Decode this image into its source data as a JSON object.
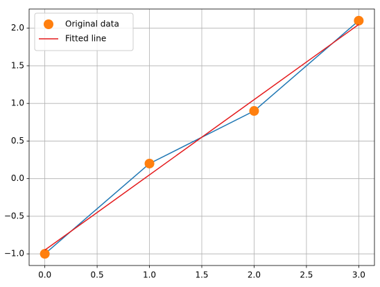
{
  "chart_data": {
    "type": "line",
    "x": [
      0,
      1,
      2,
      3
    ],
    "series": [
      {
        "kind": "line",
        "color": "#1f77b4",
        "values": [
          -1,
          0.2,
          0.9,
          2.1
        ]
      },
      {
        "name": "Original data",
        "kind": "scatter",
        "color": "#ff7f0e",
        "values": [
          -1,
          0.2,
          0.9,
          2.1
        ]
      },
      {
        "name": "Fitted line",
        "kind": "line",
        "color": "#e41a1c",
        "x": [
          0,
          3
        ],
        "values": [
          -0.95,
          2.05
        ]
      }
    ],
    "xlim": [
      -0.15,
      3.15
    ],
    "ylim": [
      -1.155,
      2.255
    ],
    "xticks": [
      {
        "value": 0,
        "label": "0.0"
      },
      0.5,
      {
        "value": 1,
        "label": "1.0"
      },
      1.5,
      {
        "value": 2,
        "label": "2.0"
      },
      2.5,
      {
        "value": 3,
        "label": "3.0"
      }
    ],
    "yticks": [
      {
        "value": -1,
        "label": "−1.0"
      },
      {
        "value": -0.5,
        "label": "−0.5"
      },
      {
        "value": 0,
        "label": "0.0"
      },
      0.5,
      {
        "value": 1,
        "label": "1.0"
      },
      1.5,
      {
        "value": 2,
        "label": "2.0"
      }
    ],
    "grid": true,
    "legend": "upper-left"
  }
}
